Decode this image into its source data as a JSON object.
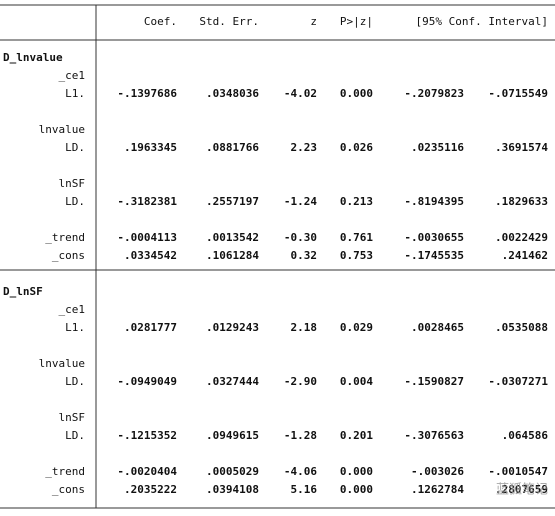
{
  "table": {
    "columns": [
      "Coef.",
      "Std. Err.",
      "z",
      "P>|z|",
      "[95% Conf. Interval]"
    ],
    "sections": [
      {
        "name": "D_lnvalue",
        "rows": [
          {
            "label": "_ce1"
          },
          {
            "label": "L1.",
            "cells": [
              "-.1397686",
              ".0348036",
              "-4.02",
              "0.000",
              "-.2079823",
              "-.0715549"
            ]
          },
          {
            "label": "lnvalue"
          },
          {
            "label": "LD.",
            "cells": [
              ".1963345",
              ".0881766",
              "2.23",
              "0.026",
              ".0235116",
              ".3691574"
            ]
          },
          {
            "label": "lnSF"
          },
          {
            "label": "LD.",
            "cells": [
              "-.3182381",
              ".2557197",
              "-1.24",
              "0.213",
              "-.8194395",
              ".1829633"
            ]
          },
          {
            "label": "_trend",
            "cells": [
              "-.0004113",
              ".0013542",
              "-0.30",
              "0.761",
              "-.0030655",
              ".0022429"
            ]
          },
          {
            "label": "_cons",
            "cells": [
              ".0334542",
              ".1061284",
              "0.32",
              "0.753",
              "-.1745535",
              ".241462"
            ]
          }
        ]
      },
      {
        "name": "D_lnSF",
        "rows": [
          {
            "label": "_ce1"
          },
          {
            "label": "L1.",
            "cells": [
              ".0281777",
              ".0129243",
              "2.18",
              "0.029",
              ".0028465",
              ".0535088"
            ]
          },
          {
            "label": "lnvalue"
          },
          {
            "label": "LD.",
            "cells": [
              "-.0949049",
              ".0327444",
              "-2.90",
              "0.004",
              "-.1590827",
              "-.0307271"
            ]
          },
          {
            "label": "lnSF"
          },
          {
            "label": "LD.",
            "cells": [
              "-.1215352",
              ".0949615",
              "-1.28",
              "0.201",
              "-.3076563",
              ".064586"
            ]
          },
          {
            "label": "_trend",
            "cells": [
              "-.0020404",
              ".0005029",
              "-4.06",
              "0.000",
              "-.003026",
              "-.0010547"
            ]
          },
          {
            "label": "_cons",
            "cells": [
              ".2035222",
              ".0394108",
              "5.16",
              "0.000",
              ".1262784",
              ".2807659"
            ]
          }
        ]
      }
    ]
  },
  "watermark": "蓝狐笔记"
}
